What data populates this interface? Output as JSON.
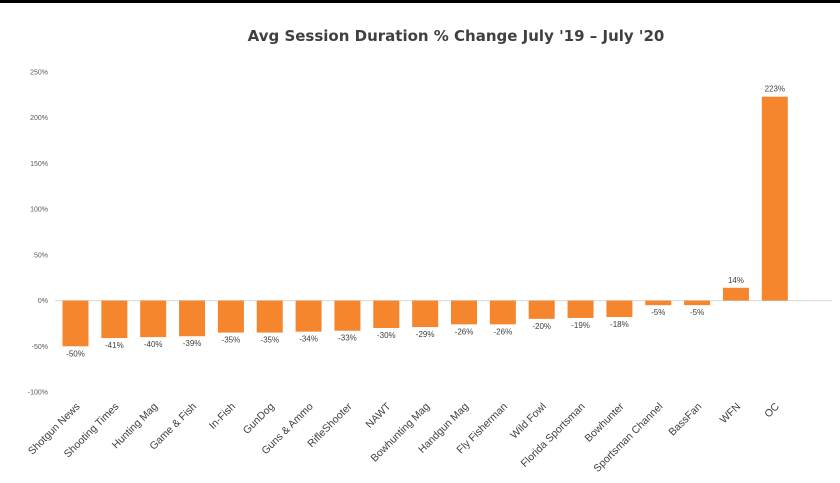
{
  "chart_data": {
    "type": "bar",
    "title": "Avg Session Duration % Change July '19 – July '20",
    "categories": [
      "Shotgun News",
      "Shooting Times",
      "Hunting Mag",
      "Game & Fish",
      "In-Fish",
      "GunDog",
      "Guns & Ammo",
      "RifleShooter",
      "NAWT",
      "Bowhunting Mag",
      "Handgun Mag",
      "Fly Fisherman",
      "Wild Fowl",
      "Florida Sportsman",
      "Bowhunter",
      "Sportsman Channel",
      "BassFan",
      "WFN",
      "OC"
    ],
    "values": [
      -50,
      -41,
      -40,
      -39,
      -35,
      -35,
      -34,
      -33,
      -30,
      -29,
      -26,
      -26,
      -20,
      -19,
      -18,
      -5,
      -5,
      14,
      223
    ],
    "data_labels": [
      "-50%",
      "-41%",
      "-40%",
      "-39%",
      "-35%",
      "-35%",
      "-34%",
      "-33%",
      "-30%",
      "-29%",
      "-26%",
      "-26%",
      "-20%",
      "-19%",
      "-18%",
      "-5%",
      "-5%",
      "14%",
      "223%"
    ],
    "yticks": [
      -100,
      -50,
      0,
      50,
      100,
      150,
      200,
      250
    ],
    "ytick_labels": [
      "-100%",
      "-50%",
      "0%",
      "50%",
      "100%",
      "150%",
      "200%",
      "250%"
    ],
    "ylim": [
      -100,
      250
    ],
    "grid": false,
    "bar_color": "#f5862e",
    "axis_color": "#d9d9d9"
  }
}
